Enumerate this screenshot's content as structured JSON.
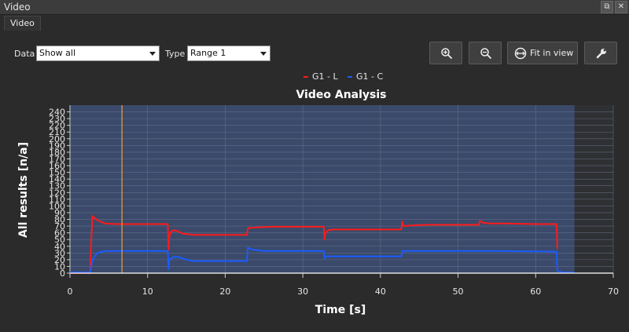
{
  "window": {
    "title": "Video"
  },
  "tabs": [
    {
      "label": "Video"
    }
  ],
  "controls": {
    "data_label": "Data",
    "data_value": "Show all",
    "type_label": "Type",
    "type_value": "Range 1",
    "fit_label": "Fit in view"
  },
  "chart_data": {
    "type": "line",
    "title": "Video Analysis",
    "xlabel": "Time [s]",
    "ylabel": "All results [n/a]",
    "xlim": [
      0,
      70
    ],
    "ylim": [
      0,
      250
    ],
    "xticks": [
      0,
      10,
      20,
      30,
      40,
      50,
      60,
      70
    ],
    "yticks": [
      0,
      10,
      20,
      30,
      40,
      50,
      60,
      70,
      80,
      90,
      100,
      110,
      120,
      130,
      140,
      150,
      160,
      170,
      180,
      190,
      200,
      210,
      220,
      230,
      240
    ],
    "grid": true,
    "legend_position": "top-center",
    "shaded_range": [
      0,
      65
    ],
    "cursor_x": 6.7,
    "colors": {
      "plot_background": "#3b4a6b",
      "series1": "#ff1a1a",
      "series2": "#1a5cff",
      "cursor": "#e6a040",
      "grid": "#6a7590"
    },
    "series": [
      {
        "name": "G1 - L",
        "x": [
          0,
          2.6,
          2.7,
          2.9,
          3.5,
          4.5,
          6,
          10,
          12.6,
          12.7,
          12.8,
          13.0,
          13.3,
          13.8,
          14.5,
          16,
          20,
          22.8,
          22.9,
          23.0,
          24,
          26,
          30,
          32.7,
          32.8,
          32.9,
          33.3,
          34,
          36,
          40,
          42.7,
          42.8,
          43.0,
          44,
          46,
          50,
          52.6,
          52.7,
          52.8,
          53.2,
          54,
          56,
          60,
          62.7,
          62.8
        ],
        "y": [
          0,
          0,
          40,
          85,
          79,
          74,
          73,
          73,
          73,
          35,
          55,
          61,
          64,
          63,
          59,
          57,
          57,
          57,
          66,
          67,
          68,
          69,
          69,
          69,
          50,
          60,
          64,
          65,
          65,
          65,
          65,
          77,
          70,
          71,
          72,
          72,
          72,
          72,
          78,
          75,
          74,
          74,
          73,
          73,
          36
        ]
      },
      {
        "name": "G1 - C",
        "x": [
          0,
          2.6,
          2.8,
          3.0,
          3.5,
          4.5,
          6,
          10,
          12.6,
          12.7,
          12.8,
          13.3,
          14,
          15,
          16,
          20,
          22.8,
          22.9,
          23.5,
          25,
          30,
          32.7,
          32.8,
          33,
          35,
          40,
          42.7,
          42.8,
          43,
          45,
          50,
          55,
          62.7,
          62.8,
          63.5,
          65
        ],
        "y": [
          1,
          1,
          14,
          22,
          30,
          33,
          33,
          33,
          33,
          6,
          20,
          24,
          24,
          20,
          18,
          18,
          18,
          38,
          35,
          33,
          33,
          33,
          22,
          25,
          25,
          25,
          25,
          33,
          33,
          33,
          33,
          33,
          32,
          3,
          1,
          1
        ]
      }
    ]
  }
}
